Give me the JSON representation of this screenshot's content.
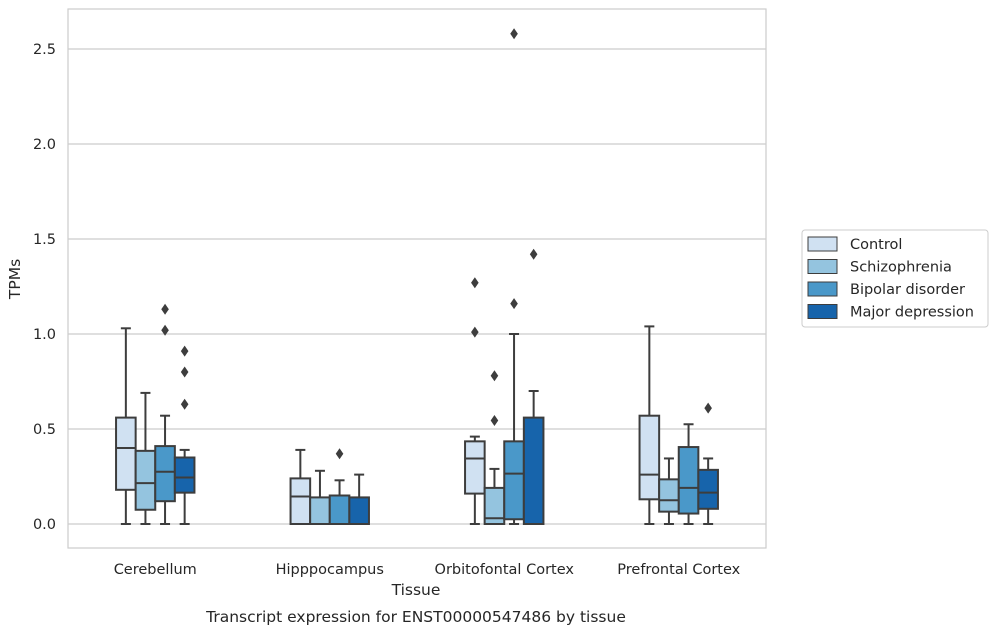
{
  "chart_data": {
    "type": "box",
    "title": "",
    "caption": "Transcript expression for ENST00000547486 by tissue",
    "xlabel": "Tissue",
    "ylabel": "TPMs",
    "ylim": [
      -0.13,
      2.72
    ],
    "yticks": [
      "0.0",
      "0.5",
      "1.0",
      "1.5",
      "2.0",
      "2.5"
    ],
    "grid": true,
    "legend_position": "right",
    "categories": [
      "Cerebellum",
      "Hipppocampus",
      "Orbitofontal Cortex",
      "Prefrontal Cortex"
    ],
    "colors": {
      "Control": "#d0e1f2",
      "Schizophrenia": "#94c4df",
      "Bipolar disorder": "#4a98c9",
      "Major depression": "#1764ab",
      "line": "#3d3d3d",
      "grid": "#cccccc",
      "frame": "#cccccc"
    },
    "series": [
      {
        "name": "Control",
        "boxes": [
          {
            "whislo": 0.0,
            "q1": 0.18,
            "med": 0.4,
            "q3": 0.56,
            "whishi": 1.03,
            "fliers": []
          },
          {
            "whislo": 0.0,
            "q1": 0.0,
            "med": 0.145,
            "q3": 0.24,
            "whishi": 0.39,
            "fliers": []
          },
          {
            "whislo": 0.0,
            "q1": 0.16,
            "med": 0.345,
            "q3": 0.435,
            "whishi": 0.46,
            "fliers": [
              1.01,
              1.27
            ]
          },
          {
            "whislo": 0.0,
            "q1": 0.13,
            "med": 0.26,
            "q3": 0.57,
            "whishi": 1.04,
            "fliers": []
          }
        ]
      },
      {
        "name": "Schizophrenia",
        "boxes": [
          {
            "whislo": 0.0,
            "q1": 0.075,
            "med": 0.215,
            "q3": 0.385,
            "whishi": 0.69,
            "fliers": []
          },
          {
            "whislo": 0.0,
            "q1": 0.0,
            "med": 0.0,
            "q3": 0.14,
            "whishi": 0.28,
            "fliers": []
          },
          {
            "whislo": 0.0,
            "q1": 0.0,
            "med": 0.03,
            "q3": 0.19,
            "whishi": 0.29,
            "fliers": [
              0.545,
              0.78
            ]
          },
          {
            "whislo": 0.0,
            "q1": 0.065,
            "med": 0.125,
            "q3": 0.235,
            "whishi": 0.345,
            "fliers": []
          }
        ]
      },
      {
        "name": "Bipolar disorder",
        "boxes": [
          {
            "whislo": 0.0,
            "q1": 0.12,
            "med": 0.275,
            "q3": 0.41,
            "whishi": 0.57,
            "fliers": [
              1.02,
              1.13
            ]
          },
          {
            "whislo": 0.0,
            "q1": 0.0,
            "med": 0.0,
            "q3": 0.15,
            "whishi": 0.23,
            "fliers": [
              0.37
            ]
          },
          {
            "whislo": 0.0,
            "q1": 0.025,
            "med": 0.265,
            "q3": 0.435,
            "whishi": 1.0,
            "fliers": [
              1.16,
              2.58
            ]
          },
          {
            "whislo": 0.0,
            "q1": 0.055,
            "med": 0.19,
            "q3": 0.405,
            "whishi": 0.525,
            "fliers": []
          }
        ]
      },
      {
        "name": "Major depression",
        "boxes": [
          {
            "whislo": 0.0,
            "q1": 0.165,
            "med": 0.245,
            "q3": 0.35,
            "whishi": 0.39,
            "fliers": [
              0.63,
              0.8,
              0.91
            ]
          },
          {
            "whislo": 0.0,
            "q1": 0.0,
            "med": 0.0,
            "q3": 0.14,
            "whishi": 0.26,
            "fliers": []
          },
          {
            "whislo": 0.0,
            "q1": 0.0,
            "med": 0.0,
            "q3": 0.56,
            "whishi": 0.7,
            "fliers": [
              1.42
            ]
          },
          {
            "whislo": 0.0,
            "q1": 0.08,
            "med": 0.165,
            "q3": 0.285,
            "whishi": 0.345,
            "fliers": [
              0.61
            ]
          }
        ]
      }
    ]
  }
}
